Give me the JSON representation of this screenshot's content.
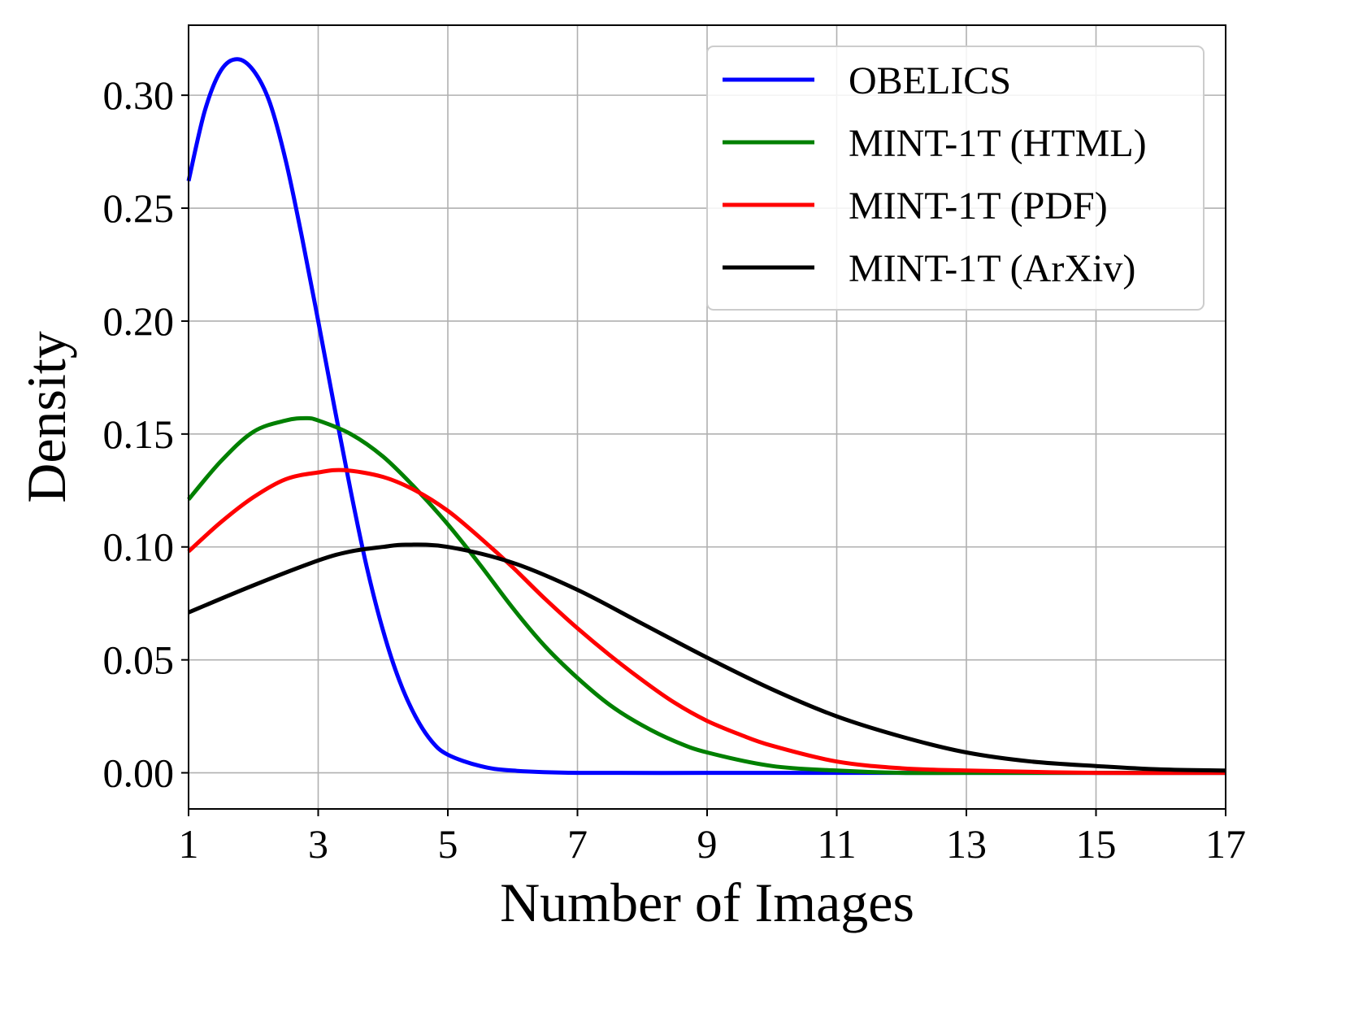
{
  "chart_data": {
    "type": "line",
    "title": "",
    "xlabel": "Number of Images",
    "ylabel": "Density",
    "xlim": [
      1,
      17
    ],
    "ylim": [
      -0.016,
      0.331
    ],
    "xticks": [
      1,
      3,
      5,
      7,
      9,
      11,
      13,
      15,
      17
    ],
    "xtick_labels": [
      "1",
      "3",
      "5",
      "7",
      "9",
      "11",
      "13",
      "15",
      "17"
    ],
    "yticks": [
      0.0,
      0.05,
      0.1,
      0.15,
      0.2,
      0.25,
      0.3
    ],
    "ytick_labels": [
      "0.00",
      "0.05",
      "0.10",
      "0.15",
      "0.20",
      "0.25",
      "0.30"
    ],
    "grid": true,
    "legend_position": "top-right",
    "series": [
      {
        "name": "OBELICS",
        "color": "#0000ff",
        "points": [
          [
            1.0,
            0.262
          ],
          [
            1.25,
            0.293
          ],
          [
            1.5,
            0.311
          ],
          [
            1.75,
            0.316
          ],
          [
            2.0,
            0.311
          ],
          [
            2.25,
            0.297
          ],
          [
            2.5,
            0.271
          ],
          [
            2.75,
            0.237
          ],
          [
            3.0,
            0.2
          ],
          [
            3.25,
            0.162
          ],
          [
            3.5,
            0.125
          ],
          [
            3.75,
            0.091
          ],
          [
            4.0,
            0.063
          ],
          [
            4.25,
            0.041
          ],
          [
            4.5,
            0.025
          ],
          [
            4.75,
            0.014
          ],
          [
            5.0,
            0.008
          ],
          [
            5.5,
            0.003
          ],
          [
            6.0,
            0.001
          ],
          [
            7.0,
            0.0
          ],
          [
            9.0,
            0.0
          ],
          [
            11.0,
            0.0
          ],
          [
            13.0,
            0.0
          ],
          [
            15.0,
            0.0
          ],
          [
            17.0,
            0.0
          ]
        ]
      },
      {
        "name": "MINT-1T (HTML)",
        "color": "#008000",
        "points": [
          [
            1.0,
            0.121
          ],
          [
            1.5,
            0.138
          ],
          [
            2.0,
            0.151
          ],
          [
            2.5,
            0.156
          ],
          [
            2.8,
            0.157
          ],
          [
            3.0,
            0.156
          ],
          [
            3.5,
            0.15
          ],
          [
            4.0,
            0.14
          ],
          [
            4.5,
            0.126
          ],
          [
            5.0,
            0.11
          ],
          [
            5.5,
            0.092
          ],
          [
            6.0,
            0.073
          ],
          [
            6.5,
            0.056
          ],
          [
            7.0,
            0.042
          ],
          [
            7.5,
            0.03
          ],
          [
            8.0,
            0.021
          ],
          [
            8.5,
            0.014
          ],
          [
            9.0,
            0.009
          ],
          [
            10.0,
            0.003
          ],
          [
            11.0,
            0.001
          ],
          [
            12.0,
            0.0
          ],
          [
            13.0,
            0.0
          ],
          [
            15.0,
            0.0
          ],
          [
            17.0,
            0.0
          ]
        ]
      },
      {
        "name": "MINT-1T (PDF)",
        "color": "#ff0000",
        "points": [
          [
            1.0,
            0.098
          ],
          [
            1.5,
            0.111
          ],
          [
            2.0,
            0.122
          ],
          [
            2.5,
            0.13
          ],
          [
            3.0,
            0.133
          ],
          [
            3.4,
            0.134
          ],
          [
            4.0,
            0.131
          ],
          [
            4.5,
            0.125
          ],
          [
            5.0,
            0.116
          ],
          [
            5.5,
            0.104
          ],
          [
            6.0,
            0.091
          ],
          [
            6.5,
            0.077
          ],
          [
            7.0,
            0.064
          ],
          [
            7.5,
            0.052
          ],
          [
            8.0,
            0.041
          ],
          [
            8.5,
            0.031
          ],
          [
            9.0,
            0.023
          ],
          [
            9.5,
            0.017
          ],
          [
            10.0,
            0.012
          ],
          [
            11.0,
            0.005
          ],
          [
            12.0,
            0.002
          ],
          [
            13.0,
            0.001
          ],
          [
            15.0,
            0.0
          ],
          [
            17.0,
            0.0
          ]
        ]
      },
      {
        "name": "MINT-1T (ArXiv)",
        "color": "#000000",
        "points": [
          [
            1.0,
            0.071
          ],
          [
            2.0,
            0.083
          ],
          [
            3.0,
            0.094
          ],
          [
            3.5,
            0.098
          ],
          [
            4.0,
            0.1
          ],
          [
            4.35,
            0.101
          ],
          [
            5.0,
            0.1
          ],
          [
            6.0,
            0.093
          ],
          [
            7.0,
            0.081
          ],
          [
            8.0,
            0.066
          ],
          [
            9.0,
            0.051
          ],
          [
            10.0,
            0.037
          ],
          [
            11.0,
            0.025
          ],
          [
            12.0,
            0.016
          ],
          [
            13.0,
            0.009
          ],
          [
            14.0,
            0.005
          ],
          [
            15.0,
            0.003
          ],
          [
            16.0,
            0.0015
          ],
          [
            17.0,
            0.001
          ]
        ]
      }
    ]
  }
}
